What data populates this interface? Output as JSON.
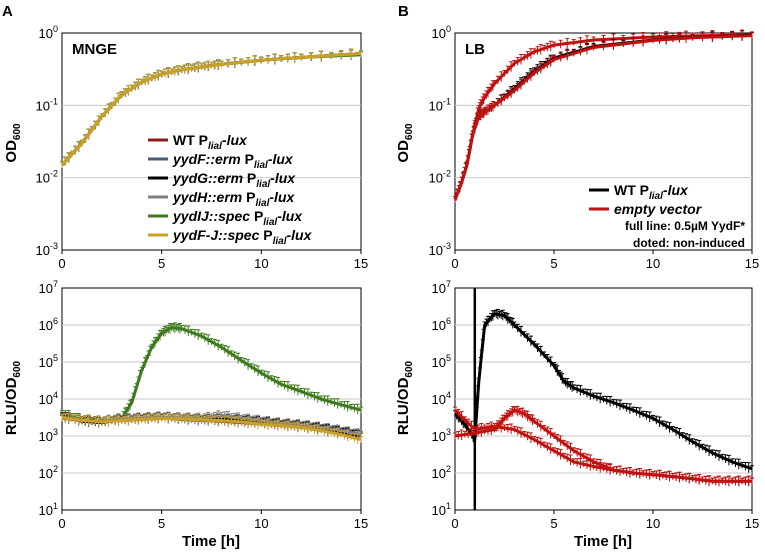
{
  "figure": {
    "panel_a_letter": "A",
    "panel_b_letter": "B",
    "xlabel": "Time [h]"
  },
  "chart_data": [
    {
      "id": "A-top",
      "type": "line",
      "panel_label": "MNGE",
      "ylabel": "OD600",
      "yscale": "log",
      "ylim": [
        0.001,
        1
      ],
      "xlim": [
        0,
        15
      ],
      "x_ticks": [
        "0",
        "5",
        "10",
        "15"
      ],
      "y_ticks": [
        "10^-3",
        "10^-2",
        "10^-1",
        "10^0"
      ],
      "legend": [
        {
          "name": "WT Plial-lux",
          "color": "#8b1a1a"
        },
        {
          "name": "yydF::erm Plial-lux",
          "color": "#4a5a7a"
        },
        {
          "name": "yydG::erm Plial-lux",
          "color": "#000000"
        },
        {
          "name": "yydH::erm Plial-lux",
          "color": "#808080"
        },
        {
          "name": "yydIJ::spec Plial-lux",
          "color": "#3d7a1e"
        },
        {
          "name": "yydF-J::spec Plial-lux",
          "color": "#c8a02a"
        }
      ],
      "series": [
        {
          "name": "WT Plial-lux",
          "color": "#8b1a1a",
          "x": [
            0,
            1,
            2,
            3,
            4,
            5,
            6,
            7,
            8,
            10,
            12,
            15
          ],
          "y": [
            0.015,
            0.03,
            0.07,
            0.14,
            0.21,
            0.27,
            0.31,
            0.34,
            0.37,
            0.42,
            0.46,
            0.52
          ]
        },
        {
          "name": "yydF::erm Plial-lux",
          "color": "#4a5a7a",
          "x": [
            0,
            1,
            2,
            3,
            4,
            5,
            6,
            7,
            8,
            10,
            12,
            15
          ],
          "y": [
            0.015,
            0.03,
            0.07,
            0.14,
            0.21,
            0.27,
            0.31,
            0.34,
            0.37,
            0.42,
            0.46,
            0.52
          ]
        },
        {
          "name": "yydG::erm Plial-lux",
          "color": "#000000",
          "x": [
            0,
            1,
            2,
            3,
            4,
            5,
            6,
            7,
            8,
            10,
            12,
            15
          ],
          "y": [
            0.015,
            0.03,
            0.07,
            0.14,
            0.21,
            0.27,
            0.31,
            0.34,
            0.37,
            0.42,
            0.46,
            0.52
          ]
        },
        {
          "name": "yydH::erm Plial-lux",
          "color": "#808080",
          "x": [
            0,
            1,
            2,
            3,
            4,
            5,
            6,
            7,
            8,
            10,
            12,
            15
          ],
          "y": [
            0.015,
            0.03,
            0.07,
            0.14,
            0.21,
            0.27,
            0.31,
            0.34,
            0.37,
            0.42,
            0.46,
            0.52
          ]
        },
        {
          "name": "yydIJ::spec Plial-lux",
          "color": "#3d7a1e",
          "x": [
            0,
            1,
            2,
            3,
            4,
            5,
            6,
            7,
            8,
            10,
            12,
            15
          ],
          "y": [
            0.015,
            0.03,
            0.07,
            0.14,
            0.21,
            0.27,
            0.31,
            0.34,
            0.37,
            0.42,
            0.46,
            0.5
          ]
        },
        {
          "name": "yydF-J::spec Plial-lux",
          "color": "#c8a02a",
          "x": [
            0,
            1,
            2,
            3,
            4,
            5,
            6,
            7,
            8,
            10,
            12,
            15
          ],
          "y": [
            0.015,
            0.03,
            0.07,
            0.14,
            0.21,
            0.27,
            0.31,
            0.34,
            0.37,
            0.42,
            0.46,
            0.52
          ]
        }
      ]
    },
    {
      "id": "B-top",
      "type": "line",
      "panel_label": "LB",
      "ylabel": "OD600",
      "yscale": "log",
      "ylim": [
        0.001,
        1
      ],
      "xlim": [
        0,
        15
      ],
      "x_ticks": [
        "0",
        "5",
        "10",
        "15"
      ],
      "y_ticks": [
        "10^-3",
        "10^-2",
        "10^-1",
        "10^0"
      ],
      "legend": [
        {
          "name": "WT Plial-lux",
          "color": "#000000"
        },
        {
          "name": "empty vector",
          "color": "#c0100f"
        }
      ],
      "annotations": [
        "full line: 0.5µM YydF*",
        "doted: non-induced"
      ],
      "series": [
        {
          "name": "empty vector (fast)",
          "color": "#c0100f",
          "x": [
            0,
            0.3,
            0.6,
            0.9,
            1.2,
            1.5,
            2,
            3,
            4,
            5,
            7,
            10,
            12,
            15
          ],
          "y": [
            0.005,
            0.008,
            0.015,
            0.04,
            0.09,
            0.13,
            0.2,
            0.38,
            0.55,
            0.68,
            0.8,
            0.88,
            0.91,
            0.94
          ]
        },
        {
          "name": "WT Plial-lux",
          "color": "#000000",
          "x": [
            0,
            0.3,
            0.6,
            0.9,
            1.2,
            1.5,
            2,
            3,
            4,
            5,
            7,
            10,
            12,
            15
          ],
          "y": [
            0.005,
            0.008,
            0.015,
            0.04,
            0.07,
            0.08,
            0.1,
            0.17,
            0.3,
            0.45,
            0.65,
            0.8,
            0.87,
            0.93
          ]
        },
        {
          "name": "empty vector (slow)",
          "color": "#c0100f",
          "x": [
            0,
            0.3,
            0.6,
            0.9,
            1.2,
            1.5,
            2,
            3,
            4,
            5,
            7,
            10,
            12,
            15
          ],
          "y": [
            0.005,
            0.008,
            0.015,
            0.04,
            0.07,
            0.08,
            0.1,
            0.16,
            0.28,
            0.43,
            0.63,
            0.79,
            0.86,
            0.92
          ]
        }
      ]
    },
    {
      "id": "A-bottom",
      "type": "line",
      "ylabel": "RLU/OD600",
      "yscale": "log",
      "ylim": [
        10,
        10000000
      ],
      "xlim": [
        0,
        15
      ],
      "x_ticks": [
        "0",
        "5",
        "10",
        "15"
      ],
      "y_ticks": [
        "10^1",
        "10^2",
        "10^3",
        "10^4",
        "10^5",
        "10^6",
        "10^7"
      ],
      "series": [
        {
          "name": "yydIJ::spec Plial-lux",
          "color": "#3d7a1e",
          "x": [
            0,
            1,
            2,
            3,
            3.5,
            4,
            4.5,
            5,
            5.5,
            6,
            7,
            8,
            9,
            10,
            11,
            12,
            13,
            14,
            15
          ],
          "y": [
            4000,
            2800,
            2500,
            3000,
            8000,
            60000,
            250000,
            600000,
            850000,
            800000,
            500000,
            250000,
            110000,
            50000,
            25000,
            16000,
            10000,
            7000,
            5000
          ]
        },
        {
          "name": "WT Plial-lux",
          "color": "#8b1a1a",
          "x": [
            0,
            1,
            2,
            3,
            4,
            5,
            6,
            7,
            8,
            9,
            10,
            11,
            12,
            13,
            14,
            15
          ],
          "y": [
            3000,
            2700,
            2500,
            2600,
            2800,
            3000,
            2900,
            2700,
            2500,
            2300,
            2100,
            1900,
            1700,
            1500,
            1300,
            1100
          ]
        },
        {
          "name": "yydF::erm Plial-lux",
          "color": "#4a5a7a",
          "x": [
            0,
            1,
            2,
            3,
            4,
            5,
            6,
            7,
            8,
            9,
            10,
            11,
            12,
            13,
            14,
            15
          ],
          "y": [
            3200,
            2600,
            2400,
            2700,
            2900,
            3100,
            2800,
            2600,
            2600,
            2500,
            2200,
            2000,
            1800,
            1500,
            1200,
            1000
          ]
        },
        {
          "name": "yydG::erm Plial-lux",
          "color": "#000000",
          "x": [
            0,
            1,
            2,
            3,
            4,
            5,
            6,
            7,
            8,
            9,
            10,
            11,
            12,
            13,
            14,
            15
          ],
          "y": [
            3500,
            2500,
            2300,
            2800,
            3000,
            3200,
            3000,
            2800,
            2900,
            2700,
            2400,
            2100,
            1900,
            1600,
            1300,
            1000
          ]
        },
        {
          "name": "yydH::erm Plial-lux",
          "color": "#808080",
          "x": [
            0,
            1,
            2,
            3,
            4,
            5,
            6,
            7,
            8,
            9,
            10,
            11,
            12,
            13,
            14,
            15
          ],
          "y": [
            3300,
            2600,
            2500,
            2900,
            3100,
            3300,
            3100,
            3000,
            3600,
            3000,
            2600,
            2200,
            2000,
            1700,
            1400,
            1100
          ]
        },
        {
          "name": "yydF-J::spec Plial-lux",
          "color": "#c8a02a",
          "x": [
            0,
            1,
            2,
            3,
            4,
            5,
            6,
            7,
            8,
            9,
            10,
            11,
            12,
            13,
            14,
            15
          ],
          "y": [
            3100,
            2700,
            2400,
            2600,
            2800,
            3000,
            2900,
            2700,
            2600,
            2400,
            2100,
            1900,
            1700,
            1400,
            1100,
            800
          ]
        }
      ]
    },
    {
      "id": "B-bottom",
      "type": "line",
      "ylabel": "RLU/OD600",
      "yscale": "log",
      "ylim": [
        10,
        10000000
      ],
      "xlim": [
        0,
        15
      ],
      "x_ticks": [
        "0",
        "5",
        "10",
        "15"
      ],
      "y_ticks": [
        "10^1",
        "10^2",
        "10^3",
        "10^4",
        "10^5",
        "10^6",
        "10^7"
      ],
      "vertical_line_x": 1,
      "series": [
        {
          "name": "WT Plial-lux",
          "color": "#000000",
          "x": [
            0,
            0.5,
            1,
            1.2,
            1.5,
            2,
            2.5,
            3,
            4,
            5,
            5.5,
            6,
            7,
            8,
            9,
            10,
            11,
            12,
            13,
            14,
            15
          ],
          "y": [
            4000,
            2000,
            800,
            30000,
            1000000,
            2000000,
            1800000,
            1000000,
            300000,
            80000,
            30000,
            20000,
            12000,
            8000,
            5000,
            3000,
            1500,
            700,
            350,
            200,
            130
          ]
        },
        {
          "name": "empty vector (induced)",
          "color": "#c0100f",
          "x": [
            0,
            1,
            2,
            2.5,
            3,
            3.5,
            4,
            5,
            6,
            7,
            8,
            9,
            10,
            11,
            12,
            13,
            14,
            15
          ],
          "y": [
            1000,
            1200,
            1500,
            3000,
            5000,
            4000,
            2500,
            1000,
            400,
            200,
            120,
            100,
            90,
            80,
            70,
            60,
            60,
            60
          ]
        },
        {
          "name": "empty vector (non-induced)",
          "color": "#c0100f",
          "x": [
            0,
            1,
            2,
            3,
            4,
            5,
            6,
            7,
            8,
            9,
            10,
            11,
            12,
            13,
            14,
            15
          ],
          "y": [
            5000,
            1500,
            1800,
            1500,
            800,
            400,
            200,
            150,
            120,
            100,
            90,
            80,
            70,
            60,
            60,
            60
          ]
        }
      ]
    }
  ]
}
